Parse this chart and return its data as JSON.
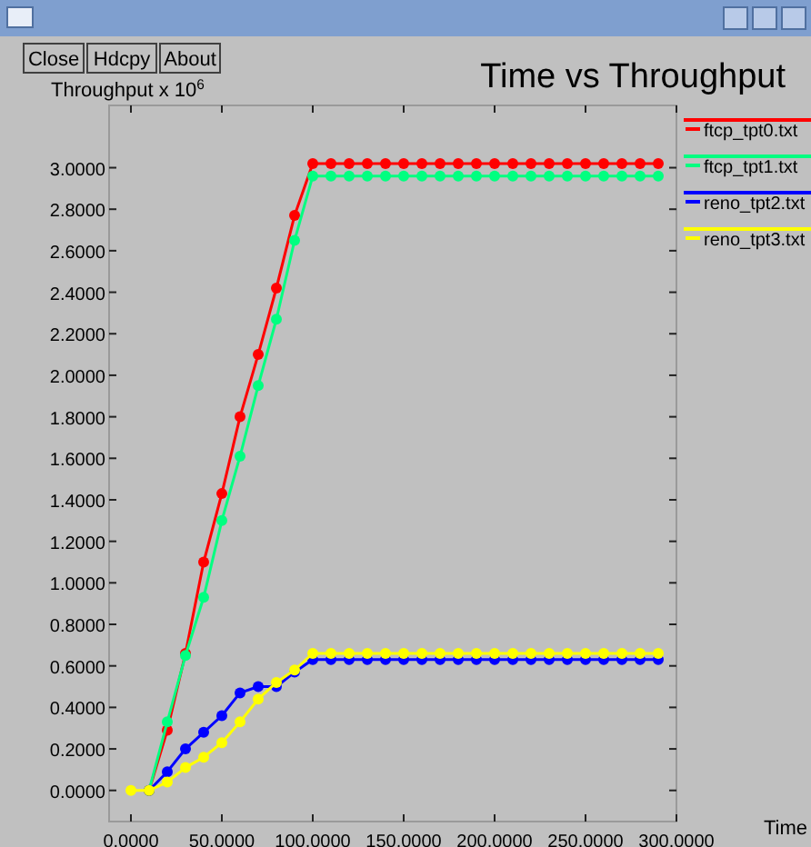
{
  "chart_data": {
    "type": "line",
    "title": "Time vs Throughput",
    "xlabel": "Time",
    "ylabel": "Throughput x 10$^{6}$",
    "annotations": [
      "Close",
      "Hdcpy",
      "About"
    ],
    "legend": "top right",
    "marker": "circle",
    "line_style": "solid",
    "grid": false,
    "xlim": [
      -12,
      300
    ],
    "ylim": [
      -0.15,
      3.3
    ],
    "xticks": [
      {
        "value": 0,
        "label": "0.0000"
      },
      {
        "value": 50,
        "label": "50.0000"
      },
      {
        "value": 100,
        "label": "100.0000"
      },
      {
        "value": 150,
        "label": "150.0000"
      },
      {
        "value": 200,
        "label": "200.0000"
      },
      {
        "value": 250,
        "label": "250.0000"
      },
      {
        "value": 300,
        "label": "300.0000"
      }
    ],
    "yticks": [
      {
        "value": 0,
        "label": "0.0000"
      },
      {
        "value": 0.2,
        "label": "0.2000"
      },
      {
        "value": 0.4,
        "label": "0.4000"
      },
      {
        "value": 0.6,
        "label": "0.6000"
      },
      {
        "value": 0.8,
        "label": "0.8000"
      },
      {
        "value": 1,
        "label": "1.0000"
      },
      {
        "value": 1.2,
        "label": "1.2000"
      },
      {
        "value": 1.4,
        "label": "1.4000"
      },
      {
        "value": 1.6,
        "label": "1.6000"
      },
      {
        "value": 1.8,
        "label": "1.8000"
      },
      {
        "value": 2,
        "label": "2.0000"
      },
      {
        "value": 2.2,
        "label": "2.2000"
      },
      {
        "value": 2.4,
        "label": "2.4000"
      },
      {
        "value": 2.6,
        "label": "2.6000"
      },
      {
        "value": 2.8,
        "label": "2.8000"
      },
      {
        "value": 3,
        "label": "3.0000"
      }
    ],
    "series": [
      {
        "name": "ftcp_tpt0.txt",
        "color": "#ff0000",
        "x": [
          10,
          20,
          30,
          40,
          50,
          60,
          70,
          80,
          90,
          100,
          110,
          120,
          130,
          140,
          150,
          160,
          170,
          180,
          190,
          200,
          210,
          220,
          230,
          240,
          250,
          260,
          270,
          280,
          290
        ],
        "values": [
          0,
          0.29,
          0.66,
          1.1,
          1.43,
          1.8,
          2.1,
          2.42,
          2.77,
          3.02,
          3.02,
          3.02,
          3.02,
          3.02,
          3.02,
          3.02,
          3.02,
          3.02,
          3.02,
          3.02,
          3.02,
          3.02,
          3.02,
          3.02,
          3.02,
          3.02,
          3.02,
          3.02,
          3.02
        ]
      },
      {
        "name": "ftcp_tpt1.txt",
        "color": "#00ff80",
        "x": [
          10,
          20,
          30,
          40,
          50,
          60,
          70,
          80,
          90,
          100,
          110,
          120,
          130,
          140,
          150,
          160,
          170,
          180,
          190,
          200,
          210,
          220,
          230,
          240,
          250,
          260,
          270,
          280,
          290
        ],
        "values": [
          0,
          0.33,
          0.65,
          0.93,
          1.3,
          1.61,
          1.95,
          2.27,
          2.65,
          2.96,
          2.96,
          2.96,
          2.96,
          2.96,
          2.96,
          2.96,
          2.96,
          2.96,
          2.96,
          2.96,
          2.96,
          2.96,
          2.96,
          2.96,
          2.96,
          2.96,
          2.96,
          2.96,
          2.96
        ]
      },
      {
        "name": "reno_tpt2.txt",
        "color": "#0000ff",
        "x": [
          10,
          20,
          30,
          40,
          50,
          60,
          70,
          80,
          90,
          100,
          110,
          120,
          130,
          140,
          150,
          160,
          170,
          180,
          190,
          200,
          210,
          220,
          230,
          240,
          250,
          260,
          270,
          280,
          290
        ],
        "values": [
          0,
          0.09,
          0.2,
          0.28,
          0.36,
          0.47,
          0.5,
          0.5,
          0.57,
          0.63,
          0.63,
          0.63,
          0.63,
          0.63,
          0.63,
          0.63,
          0.63,
          0.63,
          0.63,
          0.63,
          0.63,
          0.63,
          0.63,
          0.63,
          0.63,
          0.63,
          0.63,
          0.63,
          0.63
        ]
      },
      {
        "name": "reno_tpt3.txt",
        "color": "#ffff00",
        "x": [
          0,
          10,
          20,
          30,
          40,
          50,
          60,
          70,
          80,
          90,
          100,
          110,
          120,
          130,
          140,
          150,
          160,
          170,
          180,
          190,
          200,
          210,
          220,
          230,
          240,
          250,
          260,
          270,
          280,
          290
        ],
        "values": [
          0,
          0,
          0.04,
          0.11,
          0.16,
          0.23,
          0.33,
          0.44,
          0.52,
          0.58,
          0.66,
          0.66,
          0.66,
          0.66,
          0.66,
          0.66,
          0.66,
          0.66,
          0.66,
          0.66,
          0.66,
          0.66,
          0.66,
          0.66,
          0.66,
          0.66,
          0.66,
          0.66,
          0.66,
          0.66
        ]
      }
    ]
  }
}
